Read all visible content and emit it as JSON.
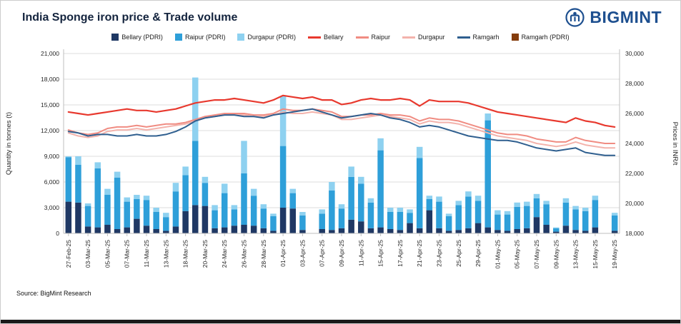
{
  "header": {
    "title": "India Sponge iron price & Trade volume",
    "brand": "BIGMINT"
  },
  "source": "Source: BigMint Research",
  "chart_data": {
    "type": "combo-stacked-bar-line",
    "title": "India Sponge iron price & Trade volume",
    "left_axis": {
      "title": "Quantity in tonnes (t)",
      "min": 0,
      "max": 21000,
      "step": 3000,
      "tick_labels": [
        "21,000",
        "18,000",
        "15,000",
        "12,000",
        "9,000",
        "6,000",
        "3,000",
        "0"
      ]
    },
    "right_axis": {
      "title": "Prices in INR/t",
      "min": 18000,
      "max": 30000,
      "step": 2000,
      "tick_labels": [
        "30,000",
        "28,000",
        "26,000",
        "24,000",
        "22,000",
        "20,000",
        "18,000"
      ]
    },
    "x_labels": [
      "27-Feb-25",
      "03-Mar-25",
      "05-Mar-25",
      "07-Mar-25",
      "11-Mar-25",
      "13-Mar-25",
      "18-Mar-25",
      "20-Mar-25",
      "24-Mar-25",
      "26-Mar-25",
      "28-Mar-25",
      "01-Apr-25",
      "03-Apr-25",
      "07-Apr-25",
      "09-Apr-25",
      "11-Apr-25",
      "15-Apr-25",
      "17-Apr-25",
      "21-Apr-25",
      "23-Apr-25",
      "25-Apr-25",
      "29-Apr-25",
      "01-May-25",
      "05-May-25",
      "07-May-25",
      "09-May-25",
      "13-May-25",
      "15-May-25",
      "19-May-25"
    ],
    "x_label_every": 2,
    "legend": [
      {
        "label": "Bellary (PDRI)",
        "swatch": "bar",
        "color": "#1F3864"
      },
      {
        "label": "Raipur (PDRI)",
        "swatch": "bar",
        "color": "#2E9FD9"
      },
      {
        "label": "Durgapur (PDRI)",
        "swatch": "bar",
        "color": "#8ED1F0"
      },
      {
        "label": "Bellary",
        "swatch": "line",
        "color": "#E8392E"
      },
      {
        "label": "Raipur",
        "swatch": "line",
        "color": "#F08C82"
      },
      {
        "label": "Durgapur",
        "swatch": "line",
        "color": "#F3B3AC"
      },
      {
        "label": "Ramgarh",
        "swatch": "line",
        "color": "#2F5F8F"
      },
      {
        "label": "Ramgarh (PDRI)",
        "swatch": "bar",
        "color": "#843C0C"
      }
    ],
    "bar_series": [
      {
        "name": "Bellary (PDRI)",
        "color": "#1F3864",
        "values": [
          3700,
          3600,
          800,
          700,
          1000,
          500,
          700,
          1700,
          900,
          500,
          300,
          800,
          2600,
          3300,
          3200,
          600,
          700,
          900,
          1000,
          900,
          600,
          300,
          3000,
          2900,
          400,
          0,
          500,
          400,
          600,
          1600,
          1400,
          600,
          700,
          500,
          400,
          1200,
          600,
          2700,
          600,
          300,
          400,
          600,
          1200,
          700,
          400,
          300,
          500,
          600,
          1900,
          1000,
          200,
          900,
          400,
          300,
          700,
          0,
          300
        ]
      },
      {
        "name": "Raipur (PDRI)",
        "color": "#2E9FD9",
        "values": [
          5200,
          4400,
          2400,
          6900,
          3500,
          6000,
          3000,
          2300,
          3000,
          2000,
          1600,
          4100,
          4200,
          7500,
          2700,
          2100,
          4000,
          1900,
          6000,
          3500,
          2300,
          1700,
          7200,
          1800,
          1700,
          0,
          1800,
          4600,
          2300,
          5000,
          4400,
          3000,
          9000,
          2000,
          2100,
          1200,
          8200,
          1300,
          3100,
          1700,
          2900,
          3700,
          2600,
          12500,
          1800,
          1900,
          2600,
          2600,
          2200,
          2400,
          400,
          2700,
          2400,
          2300,
          3200,
          0,
          1800
        ]
      },
      {
        "name": "Durgapur (PDRI)",
        "color": "#8ED1F0",
        "values": [
          100,
          1000,
          300,
          700,
          700,
          700,
          500,
          500,
          500,
          500,
          500,
          1000,
          1000,
          7400,
          700,
          600,
          1100,
          500,
          3800,
          800,
          500,
          300,
          5800,
          500,
          400,
          0,
          500,
          1000,
          500,
          1200,
          800,
          500,
          1400,
          500,
          500,
          400,
          1300,
          400,
          600,
          300,
          500,
          600,
          600,
          800,
          500,
          400,
          500,
          500,
          500,
          400,
          100,
          500,
          400,
          400,
          500,
          0,
          300
        ]
      }
    ],
    "lines": [
      {
        "name": "Bellary",
        "color": "#E8392E",
        "width": 2.2,
        "values": [
          26100,
          26000,
          25900,
          26000,
          26100,
          26200,
          26300,
          26200,
          26200,
          26100,
          26200,
          26300,
          26500,
          26700,
          26800,
          26900,
          26900,
          27000,
          26900,
          26800,
          26700,
          26900,
          27200,
          27100,
          27000,
          27100,
          26900,
          26900,
          26600,
          26700,
          26900,
          27000,
          26900,
          26900,
          27000,
          26900,
          26500,
          26900,
          26800,
          26800,
          26800,
          26700,
          26500,
          26300,
          26100,
          26000,
          25900,
          25800,
          25700,
          25600,
          25500,
          25400,
          25700,
          25500,
          25400,
          25200,
          25100
        ]
      },
      {
        "name": "Raipur",
        "color": "#F08C82",
        "width": 2,
        "values": [
          24900,
          24700,
          24600,
          24700,
          25000,
          25100,
          25100,
          25200,
          25100,
          25200,
          25300,
          25300,
          25400,
          25600,
          25800,
          25900,
          26000,
          26000,
          26000,
          25900,
          25900,
          26000,
          26300,
          26200,
          26200,
          26300,
          26200,
          26100,
          25800,
          25800,
          25900,
          25900,
          26000,
          25900,
          25900,
          25800,
          25500,
          25700,
          25600,
          25600,
          25500,
          25300,
          25100,
          24900,
          24700,
          24600,
          24600,
          24500,
          24300,
          24200,
          24100,
          24100,
          24400,
          24200,
          24100,
          24000,
          24000
        ]
      },
      {
        "name": "Durgapur",
        "color": "#F3B3AC",
        "width": 2,
        "values": [
          24700,
          24500,
          24400,
          24500,
          24800,
          24900,
          24900,
          25000,
          24900,
          25000,
          25100,
          25200,
          25300,
          25500,
          25700,
          25800,
          25900,
          25900,
          25900,
          25800,
          25800,
          25900,
          26100,
          26000,
          26000,
          26100,
          26000,
          25900,
          25600,
          25600,
          25700,
          25800,
          25900,
          25800,
          25700,
          25600,
          25300,
          25500,
          25400,
          25400,
          25300,
          25100,
          24900,
          24700,
          24500,
          24400,
          24300,
          24200,
          24000,
          23900,
          23800,
          23900,
          24100,
          23900,
          23800,
          23700,
          23700
        ]
      },
      {
        "name": "Ramgarh",
        "color": "#2F5F8F",
        "width": 2,
        "values": [
          24800,
          24700,
          24500,
          24600,
          24600,
          24500,
          24500,
          24600,
          24500,
          24500,
          24600,
          24800,
          25100,
          25500,
          25700,
          25800,
          25900,
          25900,
          25800,
          25800,
          25700,
          25900,
          26000,
          26100,
          26200,
          26300,
          26100,
          25900,
          25700,
          25800,
          25900,
          26000,
          25900,
          25700,
          25600,
          25400,
          25100,
          25200,
          25100,
          24900,
          24700,
          24500,
          24400,
          24300,
          24200,
          24200,
          24100,
          23900,
          23700,
          23600,
          23500,
          23600,
          23700,
          23400,
          23300,
          23200,
          23200
        ]
      }
    ]
  }
}
